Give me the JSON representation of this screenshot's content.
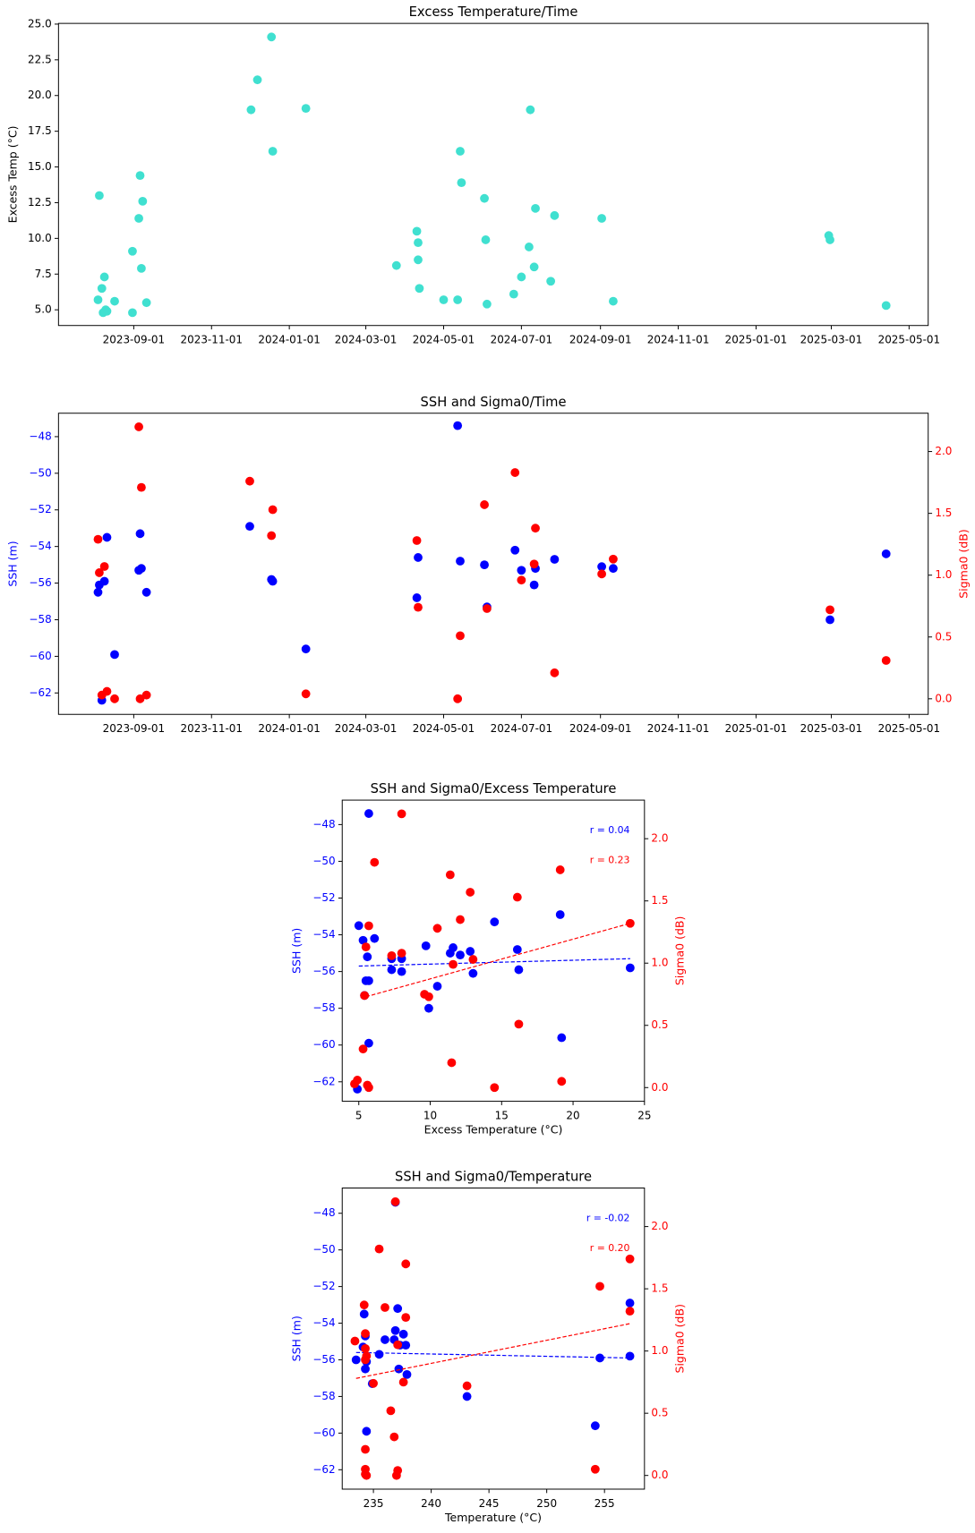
{
  "chart_data": [
    {
      "type": "scatter",
      "title": "Excess Temperature/Time",
      "ylabel": "Excess Temp (°C)",
      "x": [
        "2023-08-04",
        "2023-08-05",
        "2023-08-07",
        "2023-08-08",
        "2023-08-09",
        "2023-08-10",
        "2023-08-11",
        "2023-08-17",
        "2023-08-31",
        "2023-08-31",
        "2023-09-05",
        "2023-09-06",
        "2023-09-07",
        "2023-09-08",
        "2023-09-11",
        "2023-12-02",
        "2023-12-07",
        "2023-12-18",
        "2023-12-19",
        "2024-01-14",
        "2024-03-25",
        "2024-04-10",
        "2024-04-11",
        "2024-04-11",
        "2024-04-12",
        "2024-05-01",
        "2024-05-12",
        "2024-05-14",
        "2024-05-15",
        "2024-06-02",
        "2024-06-03",
        "2024-06-04",
        "2024-06-25",
        "2024-07-01",
        "2024-07-07",
        "2024-07-08",
        "2024-07-11",
        "2024-07-12",
        "2024-07-24",
        "2024-07-27",
        "2024-09-02",
        "2024-09-11",
        "2025-02-27",
        "2025-02-28",
        "2025-04-13"
      ],
      "series": [
        {
          "color": "#40e0d0",
          "values": [
            5.7,
            13.0,
            6.5,
            4.8,
            7.3,
            5.0,
            4.9,
            5.6,
            9.1,
            4.8,
            11.4,
            14.4,
            7.9,
            12.6,
            5.5,
            19.0,
            21.1,
            24.1,
            16.1,
            19.1,
            8.1,
            10.5,
            9.7,
            8.5,
            6.5,
            5.7,
            5.7,
            16.1,
            13.9,
            12.8,
            9.9,
            5.4,
            6.1,
            7.3,
            9.4,
            19.0,
            8.0,
            12.1,
            7.0,
            11.6,
            11.4,
            5.6,
            10.2,
            9.9,
            5.3
          ]
        }
      ],
      "xlim": [
        "2023-07-04",
        "2025-05-16"
      ],
      "xticks": [
        "2023-09-01",
        "2023-11-01",
        "2024-01-01",
        "2024-03-01",
        "2024-05-01",
        "2024-07-01",
        "2024-09-01",
        "2024-11-01",
        "2025-01-01",
        "2025-03-01",
        "2025-05-01"
      ],
      "ylim": [
        3.9,
        25.05
      ],
      "yticks": [
        {
          "value": 5,
          "label": "5.0"
        },
        {
          "value": 7.5,
          "label": "7.5"
        },
        {
          "value": 10,
          "label": "10.0"
        },
        {
          "value": 12.5,
          "label": "12.5"
        },
        {
          "value": 15,
          "label": "15.0"
        },
        {
          "value": 17.5,
          "label": "17.5"
        },
        {
          "value": 20,
          "label": "20.0"
        },
        {
          "value": 22.5,
          "label": "22.5"
        },
        {
          "value": 25,
          "label": "25.0"
        }
      ]
    },
    {
      "type": "scatter",
      "title": "SSH and Sigma0/Time",
      "ylabel": "SSH (m)",
      "y2label": "Sigma0 (dB)",
      "x": [
        "2023-08-04",
        "2023-08-05",
        "2023-08-07",
        "2023-08-09",
        "2023-08-11",
        "2023-08-17",
        "2023-09-05",
        "2023-09-06",
        "2023-09-07",
        "2023-09-11",
        "2023-12-01",
        "2023-12-18",
        "2023-12-19",
        "2024-01-14",
        "2024-04-10",
        "2024-04-11",
        "2024-05-12",
        "2024-05-14",
        "2024-06-02",
        "2024-06-04",
        "2024-06-26",
        "2024-07-01",
        "2024-07-11",
        "2024-07-12",
        "2024-07-27",
        "2024-09-02",
        "2024-09-11",
        "2025-02-28",
        "2025-04-13"
      ],
      "series": [
        {
          "color": "#0000ff",
          "values": [
            -56.5,
            -56.1,
            -62.4,
            -55.9,
            -53.5,
            -59.9,
            -55.3,
            -53.3,
            -55.2,
            -56.5,
            -52.9,
            -55.8,
            -55.9,
            -59.6,
            -56.8,
            -54.6,
            -47.4,
            -54.8,
            -55.0,
            -57.3,
            -54.2,
            -55.3,
            -56.1,
            -55.2,
            -54.7,
            -55.1,
            -55.2,
            -58.0,
            -54.4
          ]
        },
        {
          "color": "#ff0000",
          "axis": "y2",
          "values": [
            1.29,
            1.02,
            0.03,
            1.07,
            0.06,
            0.0,
            2.2,
            0.0,
            1.71,
            0.03,
            1.76,
            1.32,
            1.53,
            0.04,
            1.28,
            0.74,
            0.0,
            0.51,
            1.57,
            0.73,
            1.83,
            0.96,
            1.09,
            1.38,
            0.21,
            1.01,
            1.13,
            0.72,
            0.31
          ]
        }
      ],
      "xlim": [
        "2023-07-04",
        "2025-05-16"
      ],
      "xticks": [
        "2023-09-01",
        "2023-11-01",
        "2024-01-01",
        "2024-03-01",
        "2024-05-01",
        "2024-07-01",
        "2024-09-01",
        "2024-11-01",
        "2025-01-01",
        "2025-03-01",
        "2025-05-01"
      ],
      "ylim": [
        -63.17,
        -46.72
      ],
      "yticks": [
        {
          "value": -48,
          "label": "−48"
        },
        {
          "value": -50,
          "label": "−50"
        },
        {
          "value": -52,
          "label": "−52"
        },
        {
          "value": -54,
          "label": "−54"
        },
        {
          "value": -56,
          "label": "−56"
        },
        {
          "value": -58,
          "label": "−58"
        },
        {
          "value": -60,
          "label": "−60"
        },
        {
          "value": -62,
          "label": "−62"
        }
      ],
      "y2lim": [
        -0.126,
        2.31
      ],
      "y2ticks": [
        {
          "value": 0,
          "label": "0.0"
        },
        {
          "value": 0.5,
          "label": "0.5"
        },
        {
          "value": 1,
          "label": "1.0"
        },
        {
          "value": 1.5,
          "label": "1.5"
        },
        {
          "value": 2,
          "label": "2.0"
        }
      ]
    },
    {
      "type": "scatter",
      "title": "SSH and Sigma0/Excess Temperature",
      "xlabel": "Excess Temperature (°C)",
      "ylabel": "SSH (m)",
      "y2label": "Sigma0 (dB)",
      "series": [
        {
          "color": "#0000ff",
          "x": [
            4.9,
            5.0,
            5.3,
            5.4,
            5.5,
            5.6,
            5.7,
            5.7,
            5.7,
            6.1,
            7.3,
            7.3,
            8.0,
            8.0,
            9.7,
            9.9,
            10.5,
            11.4,
            11.6,
            12.1,
            12.8,
            13.0,
            14.5,
            16.1,
            16.2,
            19.2,
            19.1,
            24.0
          ],
          "values": [
            -62.4,
            -53.5,
            -54.3,
            -57.3,
            -56.5,
            -55.2,
            -59.9,
            -47.4,
            -56.5,
            -54.2,
            -55.3,
            -55.9,
            -56.0,
            -55.3,
            -54.6,
            -58.0,
            -56.8,
            -55.0,
            -54.7,
            -55.1,
            -54.9,
            -56.1,
            -53.3,
            -54.8,
            -55.9,
            -59.6,
            -52.9,
            -55.8
          ],
          "trend": {
            "x": [
              5.0,
              24.0
            ],
            "values": [
              -55.7,
              -55.3
            ]
          }
        },
        {
          "color": "#ff0000",
          "axis": "y2",
          "x": [
            4.7,
            4.9,
            5.3,
            5.4,
            5.5,
            5.6,
            5.7,
            5.7,
            6.1,
            7.3,
            8.0,
            8.0,
            9.6,
            9.9,
            10.5,
            11.4,
            11.5,
            11.6,
            12.1,
            12.8,
            13.0,
            14.5,
            16.1,
            16.2,
            19.2,
            19.1,
            24.0
          ],
          "values": [
            0.03,
            0.06,
            0.31,
            0.74,
            1.13,
            0.02,
            0.0,
            1.3,
            1.81,
            1.06,
            1.08,
            2.2,
            0.75,
            0.73,
            1.28,
            1.71,
            0.2,
            0.99,
            1.35,
            1.57,
            1.03,
            0.0,
            1.53,
            0.51,
            0.05,
            1.75,
            1.32
          ],
          "trend": {
            "x": [
              5.5,
              24.0
            ],
            "values": [
              0.73,
              1.32
            ]
          }
        }
      ],
      "annotations": [
        {
          "text": "r = 0.04",
          "color": "#0000ff"
        },
        {
          "text": "r = 0.23",
          "color": "#ff0000"
        }
      ],
      "xlim": [
        3.84,
        25.0
      ],
      "xticks": [
        5,
        10,
        15,
        20,
        25
      ],
      "ylim": [
        -63.06,
        -46.67
      ],
      "yticks": [
        {
          "value": -48,
          "label": "−48"
        },
        {
          "value": -50,
          "label": "−50"
        },
        {
          "value": -52,
          "label": "−52"
        },
        {
          "value": -54,
          "label": "−54"
        },
        {
          "value": -56,
          "label": "−56"
        },
        {
          "value": -58,
          "label": "−58"
        },
        {
          "value": -60,
          "label": "−60"
        },
        {
          "value": -62,
          "label": "−62"
        }
      ],
      "y2lim": [
        -0.11,
        2.31
      ],
      "y2ticks": [
        {
          "value": 0,
          "label": "0.0"
        },
        {
          "value": 0.5,
          "label": "0.5"
        },
        {
          "value": 1,
          "label": "1.0"
        },
        {
          "value": 1.5,
          "label": "1.5"
        },
        {
          "value": 2,
          "label": "2.0"
        }
      ]
    },
    {
      "type": "scatter",
      "title": "SSH and Sigma0/Temperature",
      "xlabel": "Temperature (°C)",
      "ylabel": "SSH (m)",
      "y2label": "Sigma0 (dB)",
      "series": [
        {
          "color": "#0000ff",
          "x": [
            233.5,
            234.1,
            234.2,
            234.3,
            234.3,
            234.4,
            234.4,
            234.9,
            235.5,
            236.0,
            236.8,
            236.9,
            236.9,
            237.1,
            237.2,
            237.3,
            237.6,
            237.8,
            237.9,
            243.1,
            254.2,
            254.6,
            257.2,
            257.2
          ],
          "values": [
            -56.0,
            -55.3,
            -53.5,
            -54.7,
            -56.5,
            -59.9,
            -56.1,
            -57.3,
            -55.7,
            -54.9,
            -54.9,
            -54.4,
            -47.4,
            -53.2,
            -56.5,
            -55.2,
            -54.6,
            -55.2,
            -56.8,
            -58.0,
            -59.6,
            -55.9,
            -52.9,
            -55.8
          ],
          "trend": {
            "x": [
              233.5,
              257.2
            ],
            "values": [
              -55.6,
              -55.9
            ]
          }
        },
        {
          "color": "#ff0000",
          "axis": "y2",
          "x": [
            233.4,
            234.2,
            234.3,
            234.3,
            234.3,
            234.3,
            234.3,
            234.3,
            234.4,
            234.4,
            235.0,
            235.5,
            236.0,
            236.5,
            236.8,
            236.9,
            237.1,
            237.1,
            237.0,
            237.6,
            237.8,
            237.8,
            243.1,
            254.6,
            254.2,
            257.2,
            257.2
          ],
          "values": [
            1.08,
            1.37,
            1.02,
            0.93,
            1.14,
            0.21,
            0.05,
            0.01,
            0.96,
            0.0,
            0.74,
            1.82,
            1.35,
            0.52,
            0.31,
            2.2,
            1.05,
            0.04,
            0.0,
            0.75,
            1.27,
            1.7,
            0.72,
            1.52,
            0.05,
            1.32,
            1.74
          ],
          "trend": {
            "x": [
              233.5,
              257.2
            ],
            "values": [
              0.78,
              1.22
            ]
          }
        }
      ],
      "annotations": [
        {
          "text": "r = -0.02",
          "color": "#0000ff"
        },
        {
          "text": "r = 0.20",
          "color": "#ff0000"
        }
      ],
      "xlim": [
        232.3,
        258.46
      ],
      "xticks": [
        235,
        240,
        245,
        250,
        255
      ],
      "ylim": [
        -63.06,
        -46.62
      ],
      "yticks": [
        {
          "value": -48,
          "label": "−48"
        },
        {
          "value": -50,
          "label": "−50"
        },
        {
          "value": -52,
          "label": "−52"
        },
        {
          "value": -54,
          "label": "−54"
        },
        {
          "value": -56,
          "label": "−56"
        },
        {
          "value": -58,
          "label": "−58"
        },
        {
          "value": -60,
          "label": "−60"
        },
        {
          "value": -62,
          "label": "−62"
        }
      ],
      "y2lim": [
        -0.11,
        2.31
      ],
      "y2ticks": [
        {
          "value": 0,
          "label": "0.0"
        },
        {
          "value": 0.5,
          "label": "0.5"
        },
        {
          "value": 1,
          "label": "1.0"
        },
        {
          "value": 1.5,
          "label": "1.5"
        },
        {
          "value": 2,
          "label": "2.0"
        }
      ]
    }
  ]
}
